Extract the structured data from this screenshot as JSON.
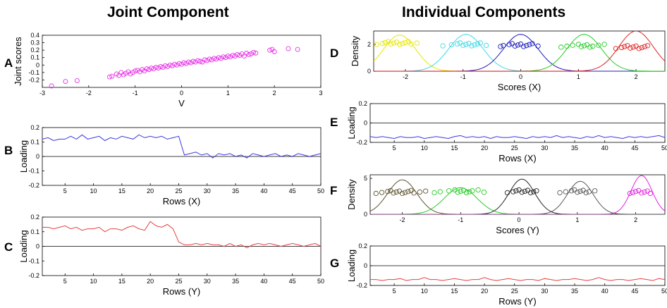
{
  "sections": {
    "joint": "Joint Component",
    "individual": "Individual Components"
  },
  "panel_letters": {
    "A": "A",
    "B": "B",
    "C": "C",
    "D": "D",
    "E": "E",
    "F": "F",
    "G": "G"
  },
  "chart_data": [
    {
      "id": "A",
      "type": "scatter",
      "xlabel": "V",
      "ylabel": "Joint scores",
      "xlim": [
        -3,
        3
      ],
      "ylim": [
        -0.3,
        0.4
      ],
      "xticks": [
        -3,
        -2,
        -1,
        0,
        1,
        2,
        3
      ],
      "yticks": [
        -0.2,
        -0.1,
        0,
        0.1,
        0.2,
        0.3,
        0.4
      ],
      "marker_color": "#e830e8",
      "x": [
        -2.8,
        -2.5,
        -2.25,
        -1.55,
        -1.5,
        -1.4,
        -1.35,
        -1.3,
        -1.25,
        -1.2,
        -1.15,
        -1.1,
        -1.05,
        -1.0,
        -0.95,
        -0.9,
        -0.85,
        -0.8,
        -0.75,
        -0.7,
        -0.65,
        -0.6,
        -0.55,
        -0.5,
        -0.45,
        -0.4,
        -0.35,
        -0.3,
        -0.25,
        -0.2,
        -0.15,
        -0.1,
        -0.05,
        0.0,
        0.05,
        0.1,
        0.15,
        0.2,
        0.25,
        0.3,
        0.35,
        0.4,
        0.45,
        0.5,
        0.55,
        0.6,
        0.65,
        0.7,
        0.75,
        0.8,
        0.85,
        0.9,
        0.95,
        1.0,
        1.05,
        1.1,
        1.15,
        1.2,
        1.25,
        1.3,
        1.35,
        1.4,
        1.45,
        1.5,
        1.55,
        1.6,
        1.9,
        1.95,
        2.0,
        2.3,
        2.5
      ],
      "y": [
        -0.28,
        -0.22,
        -0.21,
        -0.16,
        -0.15,
        -0.12,
        -0.14,
        -0.1,
        -0.13,
        -0.11,
        -0.09,
        -0.12,
        -0.1,
        -0.08,
        -0.07,
        -0.09,
        -0.06,
        -0.08,
        -0.05,
        -0.06,
        -0.04,
        -0.05,
        -0.03,
        -0.04,
        -0.02,
        -0.03,
        -0.01,
        -0.02,
        0.0,
        -0.01,
        0.01,
        0.0,
        0.02,
        0.01,
        0.03,
        0.02,
        0.04,
        0.03,
        0.05,
        0.04,
        0.06,
        0.05,
        0.04,
        0.07,
        0.06,
        0.08,
        0.07,
        0.09,
        0.08,
        0.1,
        0.09,
        0.11,
        0.1,
        0.12,
        0.11,
        0.13,
        0.12,
        0.14,
        0.13,
        0.15,
        0.12,
        0.16,
        0.14,
        0.15,
        0.17,
        0.16,
        0.2,
        0.21,
        0.18,
        0.22,
        0.21
      ]
    },
    {
      "id": "B",
      "type": "line",
      "xlabel": "Rows (X)",
      "ylabel": "Loading",
      "xlim": [
        1,
        50
      ],
      "ylim": [
        -0.2,
        0.2
      ],
      "xticks": [
        5,
        10,
        15,
        20,
        25,
        30,
        35,
        40,
        45,
        50
      ],
      "yticks": [
        -0.2,
        -0.1,
        0,
        0.1,
        0.2
      ],
      "color": "#3a3ae0",
      "zero_line": true,
      "x": [
        1,
        2,
        3,
        4,
        5,
        6,
        7,
        8,
        9,
        10,
        11,
        12,
        13,
        14,
        15,
        16,
        17,
        18,
        19,
        20,
        21,
        22,
        23,
        24,
        25,
        26,
        27,
        28,
        29,
        30,
        31,
        32,
        33,
        34,
        35,
        36,
        37,
        38,
        39,
        40,
        41,
        42,
        43,
        44,
        45,
        46,
        47,
        48,
        49,
        50
      ],
      "y": [
        0.12,
        0.13,
        0.11,
        0.12,
        0.12,
        0.14,
        0.12,
        0.15,
        0.12,
        0.13,
        0.14,
        0.11,
        0.13,
        0.12,
        0.14,
        0.13,
        0.12,
        0.15,
        0.13,
        0.14,
        0.13,
        0.14,
        0.12,
        0.13,
        0.14,
        0.01,
        0.02,
        0.03,
        0.01,
        0.02,
        -0.01,
        0.02,
        0.01,
        0.02,
        0.0,
        0.01,
        -0.01,
        0.02,
        0.01,
        0.0,
        0.01,
        0.02,
        0.0,
        0.01,
        0.0,
        0.02,
        0.01,
        0.0,
        0.01,
        0.02
      ]
    },
    {
      "id": "C",
      "type": "line",
      "xlabel": "Rows (Y)",
      "ylabel": "Loading",
      "xlim": [
        1,
        50
      ],
      "ylim": [
        -0.2,
        0.2
      ],
      "xticks": [
        5,
        10,
        15,
        20,
        25,
        30,
        35,
        40,
        45,
        50
      ],
      "yticks": [
        -0.2,
        -0.1,
        0,
        0.1,
        0.2
      ],
      "color": "#e84040",
      "zero_line": true,
      "x": [
        1,
        2,
        3,
        4,
        5,
        6,
        7,
        8,
        9,
        10,
        11,
        12,
        13,
        14,
        15,
        16,
        17,
        18,
        19,
        20,
        21,
        22,
        23,
        24,
        25,
        26,
        27,
        28,
        29,
        30,
        31,
        32,
        33,
        34,
        35,
        36,
        37,
        38,
        39,
        40,
        41,
        42,
        43,
        44,
        45,
        46,
        47,
        48,
        49,
        50
      ],
      "y": [
        0.13,
        0.13,
        0.12,
        0.13,
        0.14,
        0.12,
        0.13,
        0.11,
        0.12,
        0.12,
        0.13,
        0.1,
        0.12,
        0.12,
        0.11,
        0.13,
        0.14,
        0.12,
        0.11,
        0.17,
        0.14,
        0.13,
        0.15,
        0.12,
        0.03,
        0.01,
        0.01,
        0.02,
        0.01,
        0.02,
        0.01,
        0.01,
        0.0,
        0.02,
        0.0,
        0.01,
        -0.01,
        0.01,
        0.02,
        0.01,
        0.02,
        0.01,
        0.0,
        0.01,
        0.02,
        0.01,
        0.0,
        0.01,
        0.02,
        0.0
      ]
    },
    {
      "id": "D",
      "type": "density",
      "xlabel": "Scores (X)",
      "ylabel": "Density",
      "xlim": [
        -2.55,
        2.5
      ],
      "ylim": [
        0,
        3
      ],
      "xticks": [
        -2,
        -1,
        0,
        1,
        2
      ],
      "yticks": [
        0,
        2
      ],
      "series": [
        {
          "color": "#e6e600",
          "mean": -2.1,
          "sd": 0.28,
          "peak": 2.7,
          "points": [
            -2.5,
            -2.4,
            -2.35,
            -2.3,
            -2.25,
            -2.2,
            -2.15,
            -2.1,
            -2.05,
            -2.0,
            -1.95,
            -1.9,
            -1.8
          ],
          "level": 2.1
        },
        {
          "color": "#3dd8e8",
          "mean": -0.95,
          "sd": 0.3,
          "peak": 2.75,
          "points": [
            -1.35,
            -1.2,
            -1.1,
            -1.05,
            -1.0,
            -0.95,
            -0.9,
            -0.85,
            -0.8,
            -0.75,
            -0.7,
            -0.6
          ],
          "level": 2.0
        },
        {
          "color": "#1a1ab8",
          "mean": 0.0,
          "sd": 0.3,
          "peak": 2.75,
          "points": [
            -0.35,
            -0.3,
            -0.2,
            -0.15,
            -0.1,
            -0.05,
            0.0,
            0.05,
            0.1,
            0.15,
            0.2,
            0.3
          ],
          "level": 1.95
        },
        {
          "color": "#22cc22",
          "mean": 1.1,
          "sd": 0.3,
          "peak": 2.75,
          "points": [
            0.7,
            0.8,
            0.9,
            1.0,
            1.05,
            1.1,
            1.15,
            1.2,
            1.25,
            1.35,
            1.45
          ],
          "level": 1.9
        },
        {
          "color": "#e02020",
          "mean": 2.0,
          "sd": 0.3,
          "peak": 3.0,
          "points": [
            1.65,
            1.75,
            1.8,
            1.85,
            1.9,
            1.95,
            2.0,
            2.05,
            2.1,
            2.15,
            2.2
          ],
          "level": 1.8
        }
      ]
    },
    {
      "id": "E",
      "type": "line",
      "xlabel": "Rows (X)",
      "ylabel": "Loading",
      "xlim": [
        1,
        50
      ],
      "ylim": [
        -0.2,
        0.2
      ],
      "xticks": [
        5,
        10,
        15,
        20,
        25,
        30,
        35,
        40,
        45,
        50
      ],
      "yticks": [
        -0.2,
        0,
        0.2
      ],
      "color": "#3a3ae0",
      "zero_line": true,
      "x": [
        1,
        2,
        3,
        4,
        5,
        6,
        7,
        8,
        9,
        10,
        11,
        12,
        13,
        14,
        15,
        16,
        17,
        18,
        19,
        20,
        21,
        22,
        23,
        24,
        25,
        26,
        27,
        28,
        29,
        30,
        31,
        32,
        33,
        34,
        35,
        36,
        37,
        38,
        39,
        40,
        41,
        42,
        43,
        44,
        45,
        46,
        47,
        48,
        49,
        50
      ],
      "y": [
        -0.14,
        -0.15,
        -0.14,
        -0.15,
        -0.16,
        -0.14,
        -0.15,
        -0.15,
        -0.14,
        -0.16,
        -0.15,
        -0.14,
        -0.15,
        -0.16,
        -0.14,
        -0.13,
        -0.15,
        -0.14,
        -0.15,
        -0.14,
        -0.16,
        -0.14,
        -0.15,
        -0.15,
        -0.14,
        -0.15,
        -0.16,
        -0.14,
        -0.15,
        -0.14,
        -0.15,
        -0.13,
        -0.15,
        -0.14,
        -0.15,
        -0.16,
        -0.14,
        -0.15,
        -0.13,
        -0.15,
        -0.14,
        -0.15,
        -0.16,
        -0.14,
        -0.15,
        -0.14,
        -0.15,
        -0.14,
        -0.13,
        -0.15
      ]
    },
    {
      "id": "F",
      "type": "density",
      "xlabel": "Scores (Y)",
      "ylabel": "Density",
      "xlim": [
        -2.55,
        2.5
      ],
      "ylim": [
        0,
        5.5
      ],
      "xticks": [
        -2,
        -1,
        0,
        1,
        2
      ],
      "yticks": [
        0,
        5
      ],
      "series": [
        {
          "color": "#5c5230",
          "mean": -2.0,
          "sd": 0.25,
          "peak": 4.8,
          "points": [
            -2.45,
            -2.35,
            -2.25,
            -2.2,
            -2.15,
            -2.1,
            -2.05,
            -2.0,
            -1.95,
            -1.9,
            -1.85,
            -1.8,
            -1.7,
            -1.6
          ],
          "level": 3.1
        },
        {
          "color": "#22cc22",
          "mean": -1.0,
          "sd": 0.28,
          "peak": 3.7,
          "points": [
            -1.45,
            -1.35,
            -1.2,
            -1.1,
            -1.05,
            -1.0,
            -0.95,
            -0.9,
            -0.85,
            -0.8,
            -0.7,
            -0.6
          ],
          "level": 3.2
        },
        {
          "color": "#222222",
          "mean": 0.05,
          "sd": 0.22,
          "peak": 4.9,
          "points": [
            -0.2,
            -0.1,
            -0.05,
            0.0,
            0.05,
            0.1,
            0.15,
            0.2,
            0.25,
            0.3
          ],
          "level": 3.2
        },
        {
          "color": "#555555",
          "mean": 1.05,
          "sd": 0.22,
          "peak": 4.6,
          "points": [
            0.7,
            0.8,
            0.9,
            0.95,
            1.0,
            1.05,
            1.1,
            1.15,
            1.2,
            1.3
          ],
          "level": 3.2
        },
        {
          "color": "#e020e0",
          "mean": 2.1,
          "sd": 0.18,
          "peak": 5.4,
          "points": [
            1.9,
            1.95,
            2.0,
            2.05,
            2.1,
            2.15,
            2.2,
            2.25
          ],
          "level": 3.1
        }
      ]
    },
    {
      "id": "G",
      "type": "line",
      "xlabel": "Rows (Y)",
      "ylabel": "Loading",
      "xlim": [
        1,
        50
      ],
      "ylim": [
        -0.2,
        0.2
      ],
      "xticks": [
        5,
        10,
        15,
        20,
        25,
        30,
        35,
        40,
        45,
        50
      ],
      "yticks": [
        -0.2,
        0,
        0.2
      ],
      "color": "#e84040",
      "zero_line": true,
      "x": [
        1,
        2,
        3,
        4,
        5,
        6,
        7,
        8,
        9,
        10,
        11,
        12,
        13,
        14,
        15,
        16,
        17,
        18,
        19,
        20,
        21,
        22,
        23,
        24,
        25,
        26,
        27,
        28,
        29,
        30,
        31,
        32,
        33,
        34,
        35,
        36,
        37,
        38,
        39,
        40,
        41,
        42,
        43,
        44,
        45,
        46,
        47,
        48,
        49,
        50
      ],
      "y": [
        -0.14,
        -0.14,
        -0.15,
        -0.14,
        -0.14,
        -0.13,
        -0.15,
        -0.14,
        -0.14,
        -0.12,
        -0.14,
        -0.14,
        -0.15,
        -0.14,
        -0.13,
        -0.14,
        -0.15,
        -0.14,
        -0.14,
        -0.12,
        -0.14,
        -0.15,
        -0.14,
        -0.13,
        -0.14,
        -0.15,
        -0.14,
        -0.14,
        -0.15,
        -0.13,
        -0.14,
        -0.15,
        -0.14,
        -0.14,
        -0.13,
        -0.14,
        -0.15,
        -0.14,
        -0.12,
        -0.14,
        -0.15,
        -0.14,
        -0.14,
        -0.15,
        -0.14,
        -0.13,
        -0.14,
        -0.15,
        -0.13,
        -0.14
      ]
    }
  ]
}
